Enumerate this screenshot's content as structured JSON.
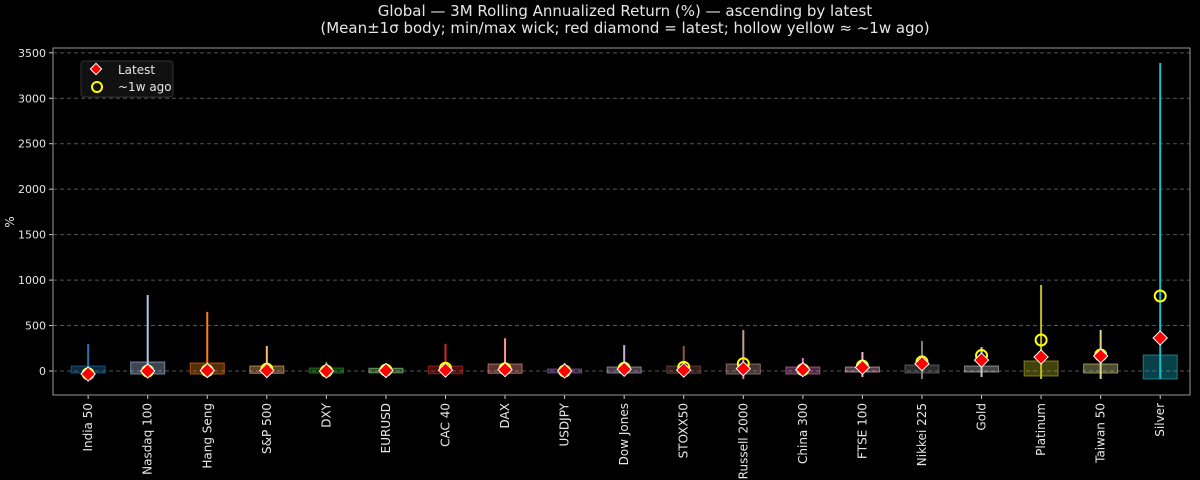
{
  "chart_data": {
    "type": "candlestick-box",
    "title": "Global — 3M Rolling Annualized Return (%) — ascending by latest",
    "subtitle": "(Mean±1σ body; min/max wick; red diamond = latest; hollow yellow ≈ ~1w ago)",
    "xlabel": "",
    "ylabel": "%",
    "ylim": [
      -264,
      3553
    ],
    "yticks": [
      0,
      500,
      1000,
      1500,
      2000,
      2500,
      3000,
      3500
    ],
    "grid": true,
    "legend_position": "top-left",
    "legend": [
      {
        "label": "Latest",
        "marker": "red diamond"
      },
      {
        "label": "~1w ago",
        "marker": "hollow yellow circle"
      }
    ],
    "colors": {
      "latest": "#ff0000",
      "week_ago": "#ffff00",
      "background": "#000000",
      "grid": "#555555"
    },
    "categories": [
      "India 50",
      "Nasdaq 100",
      "Hang Seng",
      "S&P 500",
      "DXY",
      "EURUSD",
      "CAC 40",
      "DAX",
      "USDJPY",
      "Dow Jones",
      "STOXX50",
      "Russell 2000",
      "China 300",
      "FTSE 100",
      "Nikkei 225",
      "Gold",
      "Platinum",
      "Taiwan 50",
      "Silver"
    ],
    "series": [
      {
        "category": "India 50",
        "color": "#1f77b4",
        "min": -30,
        "max": 297,
        "body_low": -22,
        "body_high": 55,
        "latest": -33,
        "week_ago": -30
      },
      {
        "category": "Nasdaq 100",
        "color": "#aec7e8",
        "min": -60,
        "max": 836,
        "body_low": -33,
        "body_high": 99,
        "latest": 0,
        "week_ago": 0
      },
      {
        "category": "Hang Seng",
        "color": "#ff7f0e",
        "min": -50,
        "max": 650,
        "body_low": -33,
        "body_high": 88,
        "latest": 5,
        "week_ago": 5
      },
      {
        "category": "S&P 500",
        "color": "#ffbb78",
        "min": -50,
        "max": 275,
        "body_low": -25,
        "body_high": 55,
        "latest": 5,
        "week_ago": 20
      },
      {
        "category": "DXY",
        "color": "#2ca02c",
        "min": -20,
        "max": 100,
        "body_low": -22,
        "body_high": 33,
        "latest": 0,
        "week_ago": 0
      },
      {
        "category": "EURUSD",
        "color": "#98df8a",
        "min": -15,
        "max": 20,
        "body_low": -20,
        "body_high": 30,
        "latest": 5,
        "week_ago": 10
      },
      {
        "category": "CAC 40",
        "color": "#d62728",
        "min": -50,
        "max": 300,
        "body_low": -30,
        "body_high": 55,
        "latest": 10,
        "week_ago": 30
      },
      {
        "category": "DAX",
        "color": "#ff9896",
        "min": -40,
        "max": 360,
        "body_low": -25,
        "body_high": 77,
        "latest": 15,
        "week_ago": 25
      },
      {
        "category": "USDJPY",
        "color": "#9467bd",
        "min": -20,
        "max": 90,
        "body_low": -22,
        "body_high": 22,
        "latest": 0,
        "week_ago": 0
      },
      {
        "category": "Dow Jones",
        "color": "#c5b0d5",
        "min": -40,
        "max": 285,
        "body_low": -22,
        "body_high": 44,
        "latest": 20,
        "week_ago": 30
      },
      {
        "category": "STOXX50",
        "color": "#8c564b",
        "min": -40,
        "max": 275,
        "body_low": -25,
        "body_high": 55,
        "latest": 10,
        "week_ago": 40
      },
      {
        "category": "Russell 2000",
        "color": "#c49c94",
        "min": -88,
        "max": 450,
        "body_low": -33,
        "body_high": 77,
        "latest": 25,
        "week_ago": 80
      },
      {
        "category": "China 300",
        "color": "#e377c2",
        "min": -30,
        "max": 143,
        "body_low": -33,
        "body_high": 44,
        "latest": 15,
        "week_ago": 15
      },
      {
        "category": "FTSE 100",
        "color": "#f7b6d2",
        "min": -66,
        "max": 209,
        "body_low": -11,
        "body_high": 44,
        "latest": 40,
        "week_ago": 55
      },
      {
        "category": "Nikkei 225",
        "color": "#7f7f7f",
        "min": -88,
        "max": 330,
        "body_low": -22,
        "body_high": 66,
        "latest": 80,
        "week_ago": 100
      },
      {
        "category": "Gold",
        "color": "#c7c7c7",
        "min": -66,
        "max": 264,
        "body_low": -11,
        "body_high": 55,
        "latest": 120,
        "week_ago": 170
      },
      {
        "category": "Platinum",
        "color": "#bcbd22",
        "min": -88,
        "max": 946,
        "body_low": -55,
        "body_high": 110,
        "latest": 154,
        "week_ago": 341
      },
      {
        "category": "Taiwan 50",
        "color": "#dbdb8d",
        "min": -88,
        "max": 451,
        "body_low": -22,
        "body_high": 77,
        "latest": 165,
        "week_ago": 176
      },
      {
        "category": "Silver",
        "color": "#17becf",
        "min": -88,
        "max": 3388,
        "body_low": -88,
        "body_high": 176,
        "latest": 363,
        "week_ago": 825
      }
    ]
  }
}
